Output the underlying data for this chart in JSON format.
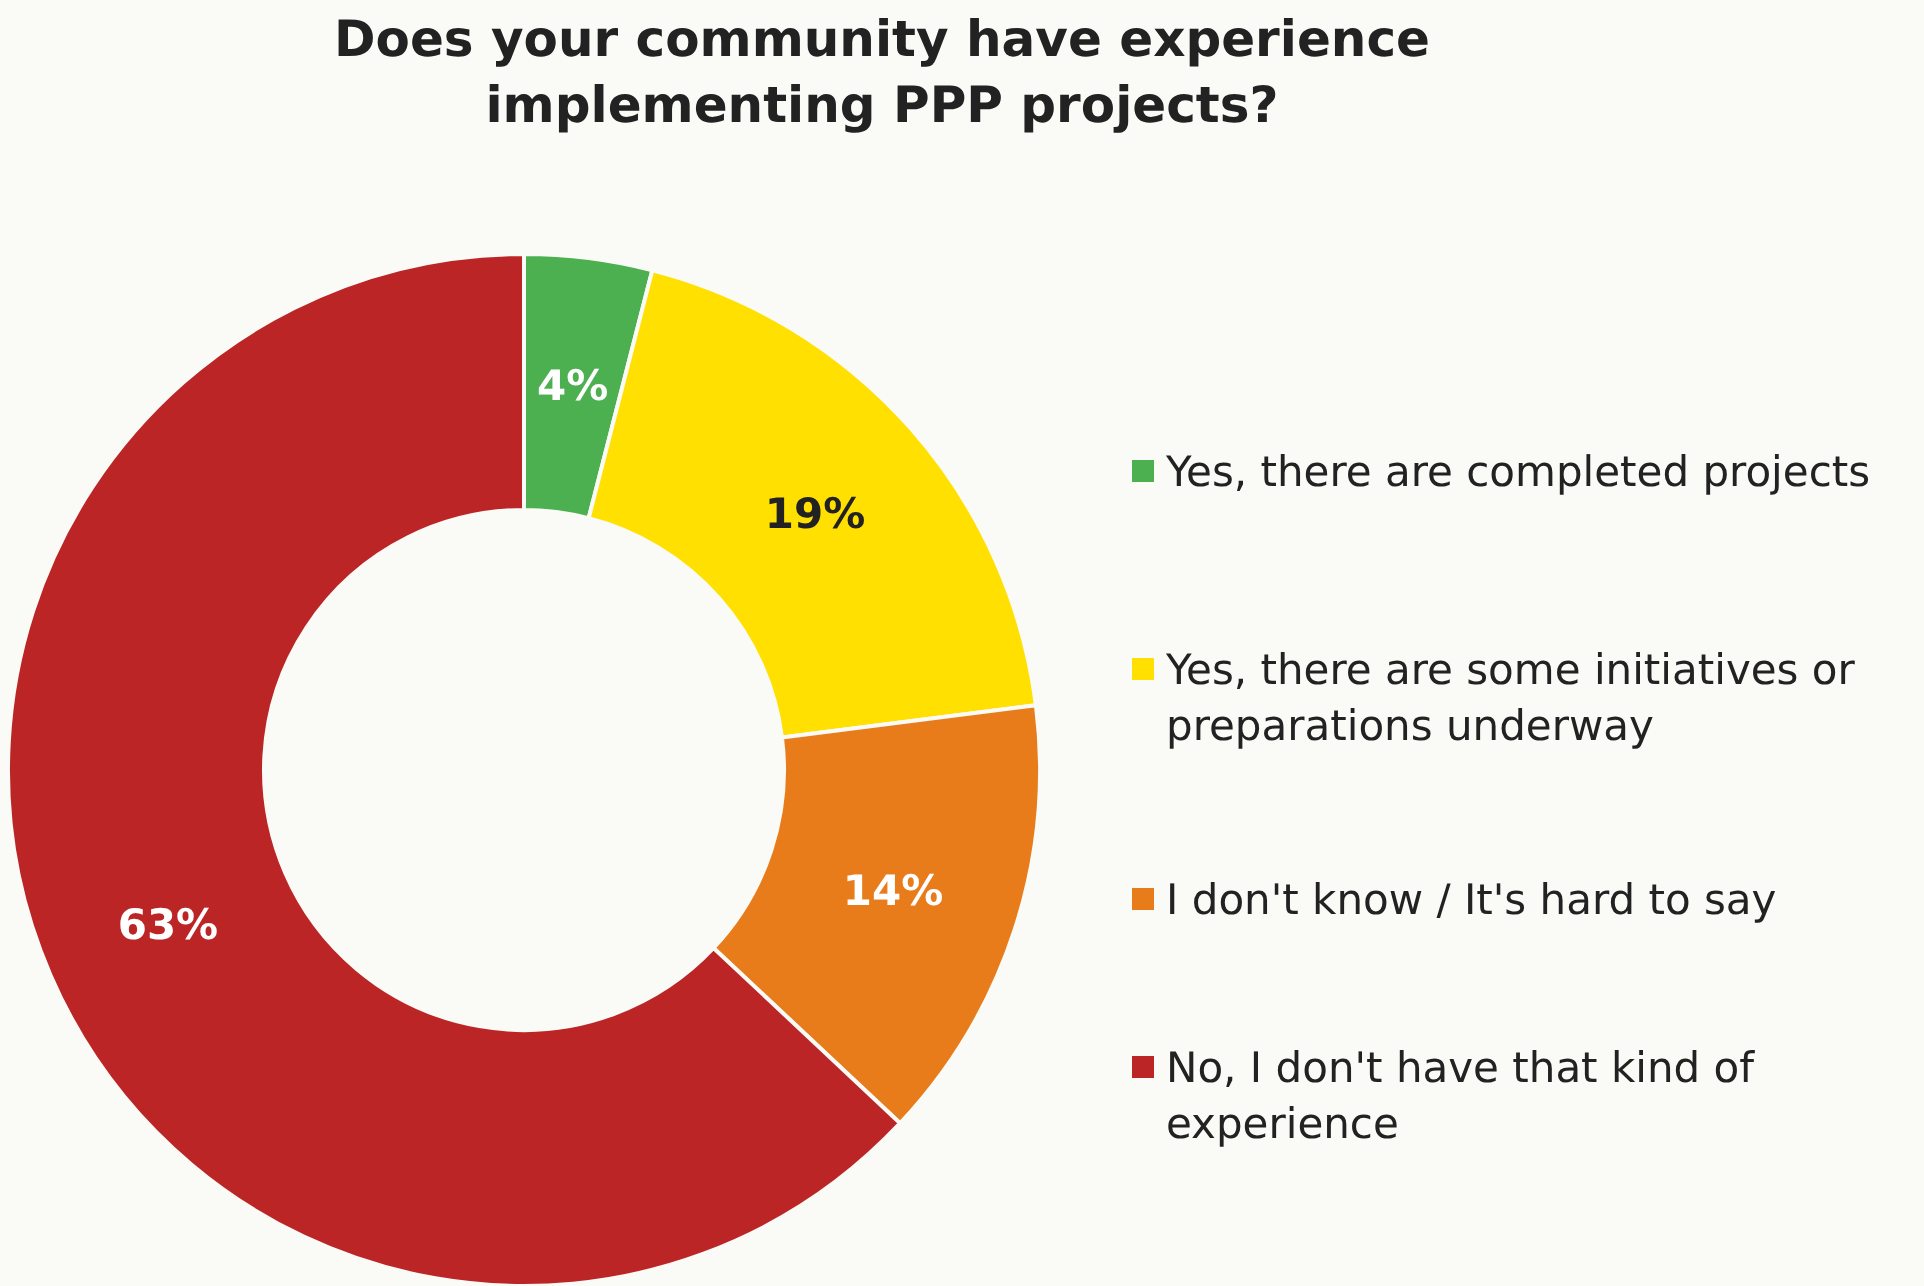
{
  "chart_data": {
    "type": "donut",
    "title": "Does your community have experience implementing PPP projects?",
    "categories": [
      "Yes, there are completed projects",
      "Yes, there are some initiatives or preparations underway",
      "I don't know / It's hard to say",
      "No, I don't have that kind of experience"
    ],
    "values": [
      4,
      19,
      14,
      63
    ],
    "colors": [
      "#4caf50",
      "#ffe000",
      "#e87c1a",
      "#bb2525"
    ],
    "value_labels": [
      "4%",
      "19%",
      "14%",
      "63%"
    ],
    "legend": "right"
  }
}
